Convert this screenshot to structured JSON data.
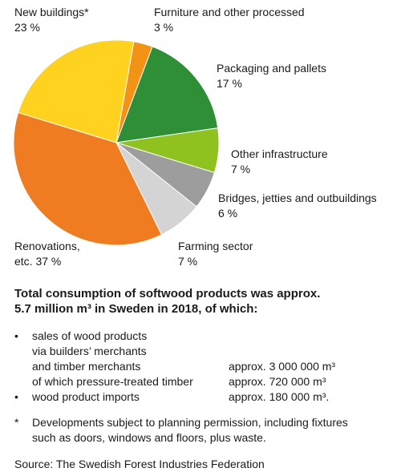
{
  "chart_data": {
    "type": "pie",
    "slices": [
      {
        "label": "New buildings*",
        "value": 23,
        "value_label": "23 %",
        "color": "#ffd21f"
      },
      {
        "label": "Furniture and other processed",
        "value": 3,
        "value_label": "3 %",
        "color": "#f39315"
      },
      {
        "label": "Packaging and pallets",
        "value": 17,
        "value_label": "17 %",
        "color": "#2f8f37"
      },
      {
        "label": "Other infrastructure",
        "value": 7,
        "value_label": "7 %",
        "color": "#8fc21f"
      },
      {
        "label": "Bridges, jetties and outbuildings",
        "value": 6,
        "value_label": "6 %",
        "color": "#9d9d9d"
      },
      {
        "label": "Farming sector",
        "value": 7,
        "value_label": "7 %",
        "color": "#d4d4d4"
      },
      {
        "label": "Renovations,",
        "label2": "etc.",
        "value": 37,
        "value_label": "37 %",
        "color": "#f07c22"
      }
    ]
  },
  "summary": {
    "line1": "Total consumption of softwood products was approx.",
    "line2": "5.7 million m³ in Sweden in 2018, of which:"
  },
  "list": [
    {
      "bullet": "•",
      "text": "sales of wood products",
      "value": ""
    },
    {
      "bullet": "",
      "text": "via builders’ merchants",
      "value": ""
    },
    {
      "bullet": "",
      "text": "and timber merchants",
      "value": "approx. 3 000 000 m³"
    },
    {
      "bullet": "",
      "text": "of which pressure-treated timber",
      "value": "approx. 720 000 m³"
    },
    {
      "bullet": "•",
      "text": "wood product imports",
      "value": "approx. 180 000 m³."
    }
  ],
  "note": {
    "star": "*",
    "line1": "Developments subject to planning permission, including fixtures",
    "line2": "such as doors, windows and floors, plus waste."
  },
  "source": "Source: The Swedish Forest Industries Federation"
}
